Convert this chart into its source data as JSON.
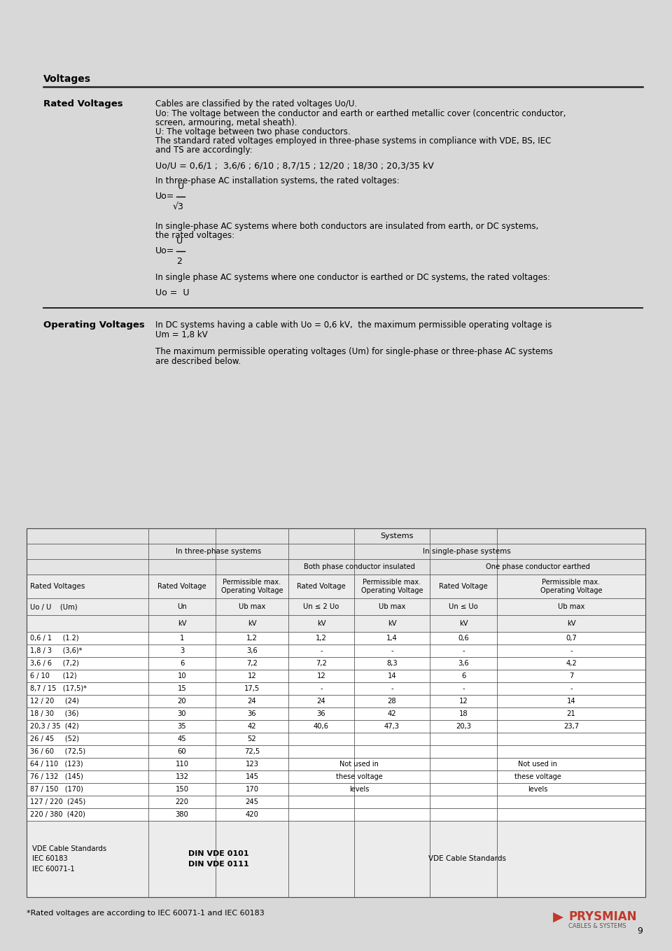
{
  "bg_color": "#d8d8d8",
  "page_width": 9.6,
  "page_height": 13.59,
  "section_title": "Voltages",
  "section_label_1": "Rated Voltages",
  "rated_text_1": "Cables are classified by the rated voltages Uo/U.",
  "rated_text_2": "Uo: The voltage between the conductor and earth or earthed metallic cover (concentric conductor,",
  "rated_text_3": "screen, armouring, metal sheath).",
  "rated_text_4": "U: The voltage between two phase conductors.",
  "rated_text_5": "The standard rated voltages employed in three-phase systems in compliance with VDE, BS, IEC",
  "rated_text_6": "and TS are accordingly:",
  "rated_formula_1": "Uo/U = 0,6/1 ;  3,6/6 ; 6/10 ; 8,7/15 ; 12/20 ; 18/30 ; 20,3/35 kV",
  "rated_text_7": "In three-phase AC installation systems, the rated voltages:",
  "rated_text_8": "In single-phase AC systems where both conductors are insulated from earth, or DC systems,",
  "rated_text_9": "the rated voltages:",
  "rated_text_10": "In single phase AC systems where one conductor is earthed or DC systems, the rated voltages:",
  "uo_eq_u": "Uo =  U",
  "section_label_2": "Operating Voltages",
  "op_text_1": "In DC systems having a cable with Uo = 0,6 kV,  the maximum permissible operating voltage is",
  "op_text_2": "Um = 1,8 kV",
  "op_text_3": "The maximum permissible operating voltages (Um) for single-phase or three-phase AC systems",
  "op_text_4": "are described below.",
  "footnote": "*Rated voltages are according to IEC 60071-1 and IEC 60183",
  "page_number": "9",
  "table_data": {
    "data_rows": [
      [
        "0,6 / 1     (1.2)",
        "1",
        "1,2",
        "1,2",
        "1,4",
        "0,6",
        "0,7"
      ],
      [
        "1,8 / 3     (3,6)*",
        "3",
        "3,6",
        "-",
        "-",
        "-",
        "-"
      ],
      [
        "3,6 / 6     (7,2)",
        "6",
        "7,2",
        "7,2",
        "8,3",
        "3,6",
        "4,2"
      ],
      [
        "6 / 10      (12)",
        "10",
        "12",
        "12",
        "14",
        "6",
        "7"
      ],
      [
        "8,7 / 15   (17,5)*",
        "15",
        "17,5",
        "-",
        "-",
        "-",
        "-"
      ],
      [
        "12 / 20     (24)",
        "20",
        "24",
        "24",
        "28",
        "12",
        "14"
      ],
      [
        "18 / 30     (36)",
        "30",
        "36",
        "36",
        "42",
        "18",
        "21"
      ],
      [
        "20,3 / 35  (42)",
        "35",
        "42",
        "40,6",
        "47,3",
        "20,3",
        "23,7"
      ],
      [
        "26 / 45     (52)",
        "45",
        "52",
        "",
        "",
        "",
        ""
      ],
      [
        "36 / 60     (72,5)",
        "60",
        "72,5",
        "",
        "",
        "",
        ""
      ],
      [
        "64 / 110   (123)",
        "110",
        "123",
        "Not used in",
        "",
        "Not used in",
        ""
      ],
      [
        "76 / 132   (145)",
        "132",
        "145",
        "these voltage",
        "",
        "these voltage",
        ""
      ],
      [
        "87 / 150   (170)",
        "150",
        "170",
        "levels",
        "",
        "levels",
        ""
      ],
      [
        "127 / 220  (245)",
        "220",
        "245",
        "",
        "",
        "",
        ""
      ],
      [
        "220 / 380  (420)",
        "380",
        "420",
        "",
        "",
        "",
        ""
      ]
    ],
    "footer_left": "VDE Cable Standards\nIEC 60183\nIEC 60071-1",
    "footer_mid": "DIN VDE 0101\nDIN VDE 0111",
    "footer_right": "VDE Cable Standards"
  }
}
